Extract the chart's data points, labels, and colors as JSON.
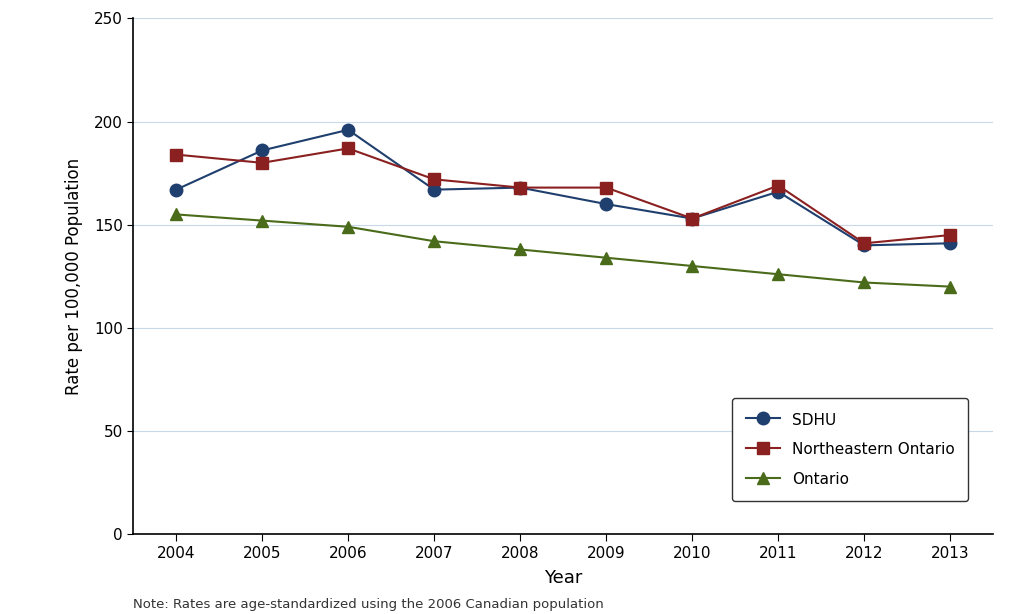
{
  "years": [
    2004,
    2005,
    2006,
    2007,
    2008,
    2009,
    2010,
    2011,
    2012,
    2013
  ],
  "sdhu": [
    167,
    186,
    196,
    167,
    168,
    160,
    153,
    166,
    140,
    141
  ],
  "northeastern_ontario": [
    184,
    180,
    187,
    172,
    168,
    168,
    153,
    169,
    141,
    145
  ],
  "ontario": [
    155,
    152,
    149,
    142,
    138,
    134,
    130,
    126,
    122,
    120
  ],
  "sdhu_color": "#1f3f6e",
  "northeastern_color": "#8b2020",
  "ontario_color": "#4a6b1a",
  "xlabel": "Year",
  "ylabel": "Rate per 100,000 Population",
  "note": "Note: Rates are age-standardized using the 2006 Canadian population",
  "ylim": [
    0,
    250
  ],
  "yticks": [
    0,
    50,
    100,
    150,
    200,
    250
  ],
  "legend_labels": [
    "SDHU",
    "Northeastern Ontario",
    "Ontario"
  ],
  "background_color": "#ffffff",
  "plot_bg_color": "#ffffff",
  "grid_color": "#c8d8e8",
  "spine_color": "#000000"
}
